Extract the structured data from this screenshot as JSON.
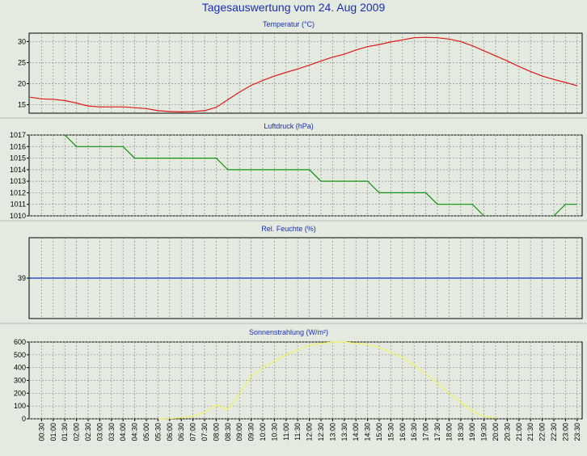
{
  "page": {
    "title": "Tagesauswertung vom 24. Aug 2009"
  },
  "colors": {
    "temperature": "#e01818",
    "pressure": "#109010",
    "humidity": "#1030c0",
    "solar": "#f2f060",
    "plot_bg": "#e4eae0",
    "title": "#1a2fb8",
    "grid": "#8a8a8a"
  },
  "x_ticks": [
    "00:30",
    "01:00",
    "01:30",
    "02:00",
    "02:30",
    "03:00",
    "03:30",
    "04:00",
    "04:30",
    "05:00",
    "05:30",
    "06:00",
    "06:30",
    "07:00",
    "07:30",
    "08:00",
    "08:30",
    "09:00",
    "09:30",
    "10:00",
    "10:30",
    "11:00",
    "11:30",
    "12:00",
    "12:30",
    "13:00",
    "13:30",
    "14:00",
    "14:30",
    "15:00",
    "15:30",
    "16:00",
    "16:30",
    "17:00",
    "17:30",
    "18:00",
    "18:30",
    "19:00",
    "19:30",
    "20:00",
    "20:30",
    "21:00",
    "21:30",
    "22:00",
    "22:30",
    "23:00",
    "23:30"
  ],
  "chart_data": [
    {
      "id": "temperature",
      "type": "line",
      "title": "Temperatur (°C)",
      "ylim": [
        13,
        32
      ],
      "yticks": [
        "15",
        "20",
        "25",
        "30"
      ],
      "ytick_values": [
        15,
        20,
        25,
        30
      ],
      "x": [
        "00:00",
        "00:30",
        "01:00",
        "01:30",
        "02:00",
        "02:30",
        "03:00",
        "03:30",
        "04:00",
        "04:30",
        "05:00",
        "05:30",
        "06:00",
        "06:30",
        "07:00",
        "07:30",
        "08:00",
        "08:30",
        "09:00",
        "09:30",
        "10:00",
        "10:30",
        "11:00",
        "11:30",
        "12:00",
        "12:30",
        "13:00",
        "13:30",
        "14:00",
        "14:30",
        "15:00",
        "15:30",
        "16:00",
        "16:30",
        "17:00",
        "17:30",
        "18:00",
        "18:30",
        "19:00",
        "19:30",
        "20:00",
        "20:30",
        "21:00",
        "21:30",
        "22:00",
        "22:30",
        "23:00",
        "23:30"
      ],
      "values": [
        16.8,
        16.4,
        16.3,
        16.0,
        15.4,
        14.7,
        14.5,
        14.5,
        14.5,
        14.3,
        14.1,
        13.6,
        13.4,
        13.3,
        13.4,
        13.6,
        14.4,
        16.2,
        18.0,
        19.6,
        20.8,
        21.8,
        22.7,
        23.5,
        24.4,
        25.4,
        26.3,
        27.0,
        28.0,
        28.8,
        29.3,
        29.9,
        30.4,
        30.9,
        31.0,
        30.9,
        30.6,
        30.0,
        29.0,
        27.8,
        26.6,
        25.4,
        24.1,
        22.9,
        21.8,
        21.0,
        20.3,
        19.5
      ],
      "grid": true
    },
    {
      "id": "pressure",
      "type": "line",
      "title": "Luftdruck (hPa)",
      "ylim": [
        1010,
        1017
      ],
      "yticks": [
        "1010",
        "1011",
        "1012",
        "1013",
        "1014",
        "1015",
        "1016",
        "1017"
      ],
      "ytick_values": [
        1010,
        1011,
        1012,
        1013,
        1014,
        1015,
        1016,
        1017
      ],
      "x": [
        "01:30",
        "02:00",
        "02:30",
        "03:00",
        "03:30",
        "04:00",
        "04:30",
        "05:00",
        "05:30",
        "06:00",
        "06:30",
        "07:00",
        "07:30",
        "08:00",
        "08:30",
        "09:00",
        "09:30",
        "10:00",
        "10:30",
        "11:00",
        "11:30",
        "12:00",
        "12:30",
        "13:00",
        "13:30",
        "14:00",
        "14:30",
        "15:00",
        "15:30",
        "16:00",
        "16:30",
        "17:00",
        "17:30",
        "18:00",
        "18:30",
        "19:00",
        "19:30",
        "22:30",
        "23:00",
        "23:30"
      ],
      "values": [
        1017,
        1016,
        1016,
        1016,
        1016,
        1016,
        1015,
        1015,
        1015,
        1015,
        1015,
        1015,
        1015,
        1015,
        1014,
        1014,
        1014,
        1014,
        1014,
        1014,
        1014,
        1014,
        1013,
        1013,
        1013,
        1013,
        1013,
        1012,
        1012,
        1012,
        1012,
        1012,
        1011,
        1011,
        1011,
        1011,
        1010,
        1010,
        1011,
        1011
      ],
      "grid": true
    },
    {
      "id": "humidity",
      "type": "line",
      "title": "Rel. Feuchte (%)",
      "ylim": [
        34,
        44
      ],
      "yticks": [
        "39"
      ],
      "ytick_values": [
        39
      ],
      "x": [
        "00:00",
        "23:30"
      ],
      "values": [
        39,
        39
      ],
      "grid": true
    },
    {
      "id": "solar",
      "type": "line",
      "title": "Sonnenstrahlung (W/m²)",
      "ylim": [
        0,
        600
      ],
      "yticks": [
        "0",
        "100",
        "200",
        "300",
        "400",
        "500",
        "600"
      ],
      "ytick_values": [
        0,
        100,
        200,
        300,
        400,
        500,
        600
      ],
      "x": [
        "05:30",
        "06:00",
        "06:30",
        "07:00",
        "07:30",
        "08:00",
        "08:30",
        "09:00",
        "09:30",
        "10:00",
        "10:30",
        "11:00",
        "11:30",
        "12:00",
        "12:30",
        "13:00",
        "13:30",
        "14:00",
        "14:30",
        "15:00",
        "15:30",
        "16:00",
        "16:30",
        "17:00",
        "17:30",
        "18:00",
        "18:30",
        "19:00",
        "19:30",
        "20:00"
      ],
      "values": [
        0,
        2,
        8,
        20,
        50,
        110,
        70,
        200,
        330,
        400,
        450,
        500,
        540,
        575,
        590,
        600,
        600,
        590,
        580,
        560,
        520,
        480,
        420,
        350,
        280,
        200,
        130,
        60,
        20,
        5
      ],
      "grid": true
    }
  ]
}
